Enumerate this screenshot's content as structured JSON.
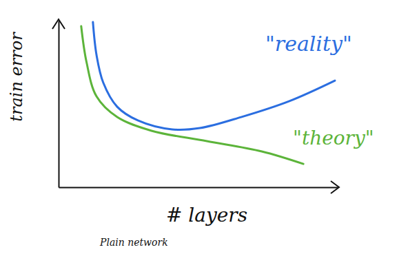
{
  "chart_data": {
    "type": "line",
    "xlabel": "# layers",
    "ylabel": "train error",
    "subtitle": "Plain network",
    "xlim": [
      0,
      10
    ],
    "ylim": [
      0,
      10
    ],
    "xticks": [],
    "yticks": [],
    "tick_labels": false,
    "grid": false,
    "series": [
      {
        "name": "\"reality\"",
        "color": "#2b6ee0",
        "x": [
          1.23,
          1.36,
          1.6,
          2.1,
          2.84,
          4.07,
          5.06,
          6.54,
          8.27,
          9.9
        ],
        "values": [
          9.92,
          7.93,
          6.28,
          4.83,
          4.01,
          3.47,
          3.55,
          4.21,
          5.17,
          6.4
        ]
      },
      {
        "name": "\"theory\"",
        "color": "#5cb43a",
        "x": [
          0.81,
          1.0,
          1.36,
          2.1,
          3.33,
          5.31,
          7.28,
          8.77
        ],
        "values": [
          9.67,
          7.52,
          5.45,
          4.21,
          3.39,
          2.77,
          2.15,
          1.4
        ]
      }
    ]
  }
}
